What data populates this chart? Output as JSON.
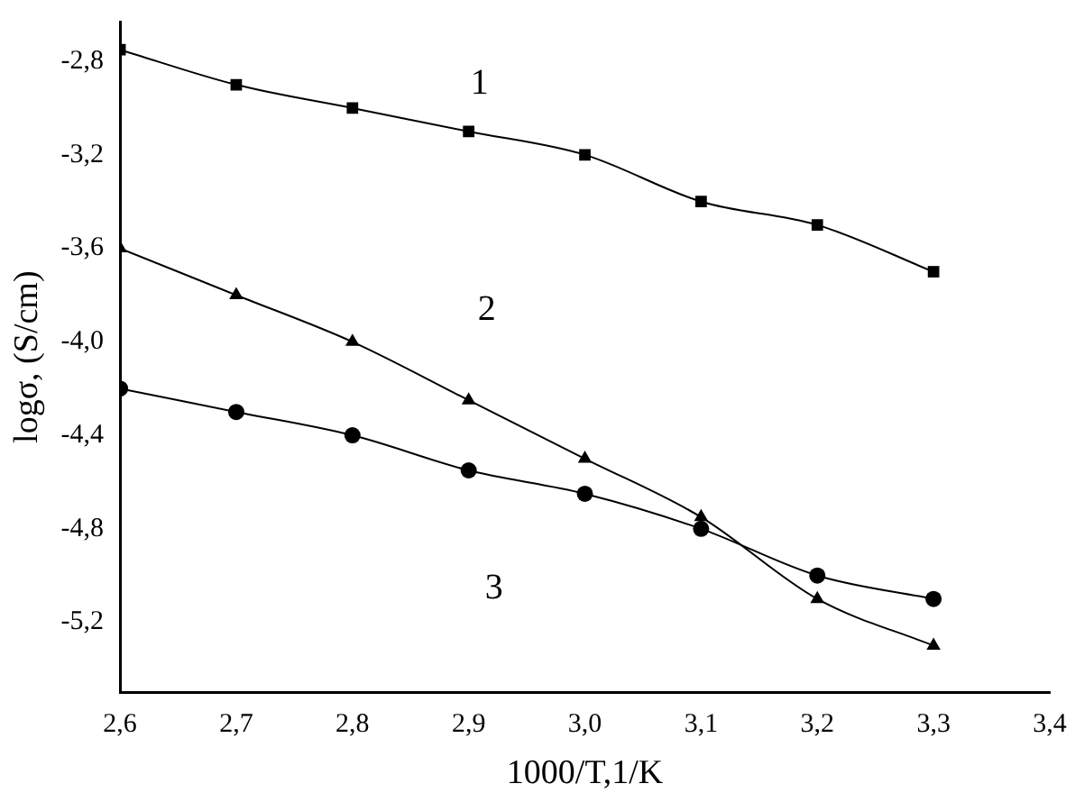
{
  "chart_data": {
    "type": "line",
    "xlabel": "1000/T,1/K",
    "ylabel": "logσ, (S/cm)",
    "x": [
      2.6,
      2.7,
      2.8,
      2.9,
      3.0,
      3.1,
      3.2,
      3.3
    ],
    "series": [
      {
        "name": "1",
        "color": "#000000",
        "marker": "square",
        "values": [
          -2.75,
          -2.9,
          -3.0,
          -3.1,
          -3.2,
          -3.4,
          -3.5,
          -3.7
        ]
      },
      {
        "name": "2",
        "color": "#000000",
        "marker": "triangle",
        "values": [
          -3.6,
          -3.8,
          -4.0,
          -4.25,
          -4.5,
          -4.75,
          -5.1,
          -5.3
        ]
      },
      {
        "name": "3",
        "color": "#000000",
        "marker": "circle",
        "values": [
          -4.2,
          -4.3,
          -4.4,
          -4.55,
          -4.65,
          -4.8,
          -5.0,
          -5.1
        ]
      }
    ],
    "xlim": [
      2.6,
      3.4
    ],
    "xticks": [
      {
        "value": 2.6,
        "label": "2,6"
      },
      {
        "value": 2.7,
        "label": "2,7"
      },
      {
        "value": 2.8,
        "label": "2,8"
      },
      {
        "value": 2.9,
        "label": "2,9"
      },
      {
        "value": 3.0,
        "label": "3,0"
      },
      {
        "value": 3.1,
        "label": "3,1"
      },
      {
        "value": 3.2,
        "label": "3,2"
      },
      {
        "value": 3.3,
        "label": "3,3"
      },
      {
        "value": 3.4,
        "label": "3,4"
      }
    ],
    "ylim": [
      -5.5,
      -2.63
    ],
    "yticks": [
      {
        "value": -5.2,
        "label": "-5,2"
      },
      {
        "value": -4.8,
        "label": "-4,8"
      },
      {
        "value": -4.4,
        "label": "-4,4"
      },
      {
        "value": -4.0,
        "label": "-4,0"
      },
      {
        "value": -3.6,
        "label": "-3,6"
      },
      {
        "value": -3.2,
        "label": "-3,2"
      },
      {
        "value": -2.8,
        "label": "-2,8"
      }
    ],
    "grid": false,
    "legend": false,
    "line_style": "solid"
  }
}
